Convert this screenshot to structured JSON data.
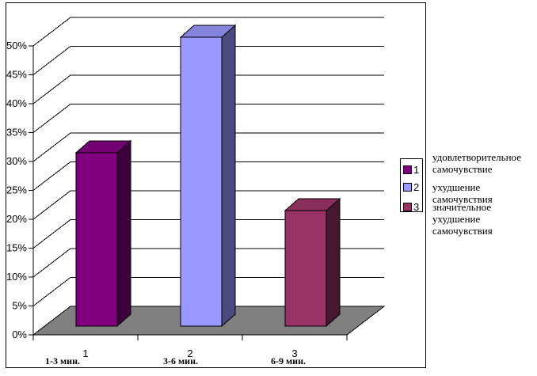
{
  "chart_data": {
    "type": "bar",
    "style": "3d-column",
    "title": "",
    "xlabel": "",
    "ylabel": "",
    "unit": "%",
    "categories": [
      "1",
      "2",
      "3"
    ],
    "category_sublabels": [
      "1-3 мин.",
      "3-6 мин.",
      "6-9 мин."
    ],
    "values": [
      30,
      50,
      20
    ],
    "ylim": [
      0,
      50
    ],
    "ytick_step": 5,
    "ytick_labels": [
      "0%",
      "5%",
      "10%",
      "15%",
      "20%",
      "25%",
      "30%",
      "35%",
      "40%",
      "45%",
      "50%"
    ],
    "grid": true,
    "floor_color": "#808080",
    "wall_color": "#ffffff",
    "bar_colors": [
      {
        "front": "#800080",
        "top": "#730073",
        "side": "#3D003D"
      },
      {
        "front": "#9999FF",
        "top": "#8484DB",
        "side": "#4A4A7E"
      },
      {
        "front": "#993366",
        "top": "#8A2E5C",
        "side": "#451731"
      }
    ],
    "legend": {
      "position": "right",
      "items": [
        {
          "key": "1",
          "color": "#800080",
          "label": "удовлетворительное самочувствие"
        },
        {
          "key": "2",
          "color": "#9999FF",
          "label": "ухудшение самочувствия"
        },
        {
          "key": "3",
          "color": "#993366",
          "label": "значительное ухудшение самочувствия"
        }
      ]
    }
  }
}
